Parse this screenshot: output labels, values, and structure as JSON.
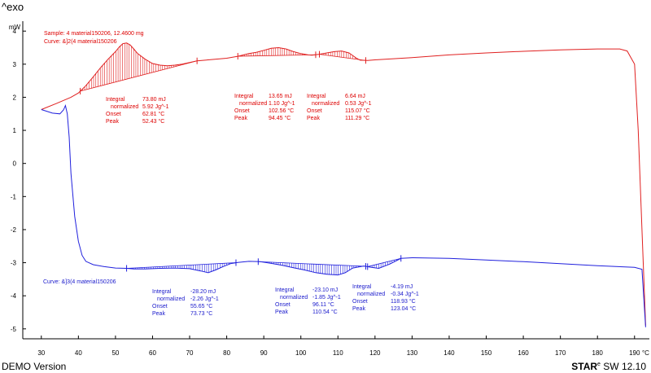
{
  "header": {
    "exo_label": "^exo"
  },
  "footer": {
    "left": "DEMO Version",
    "brand": "STAR",
    "brand_mark": "e",
    "version": "SW 12.10"
  },
  "colors": {
    "red_curve": "#e02020",
    "blue_curve": "#2020dd",
    "frame": "#000000"
  },
  "chart_data": {
    "type": "line",
    "ylabel": "mW",
    "xunit": "°C",
    "xlim": [
      25,
      194
    ],
    "ylim": [
      -5.3,
      4.3
    ],
    "x_ticks": [
      30,
      40,
      50,
      60,
      70,
      80,
      90,
      100,
      110,
      120,
      130,
      140,
      150,
      160,
      170,
      180,
      190
    ],
    "y_ticks": [
      4,
      3,
      2,
      1,
      0,
      -1,
      -2,
      -3,
      -4,
      -5
    ],
    "red_header": {
      "line1": "Sample: 4    material150206, 12.4600 mg",
      "line2": "Curve: &]2(4     material150206"
    },
    "blue_header": {
      "line1": "Curve: &]3(4    material150206"
    },
    "series": [
      {
        "name": "Curve: &]2(4",
        "color": "#e02020",
        "x": [
          30,
          34,
          38,
          40,
          42,
          44,
          46,
          48,
          50,
          51,
          52,
          53,
          54,
          55,
          56,
          58,
          60,
          62,
          64,
          66,
          68,
          70,
          72,
          75,
          80,
          83,
          86,
          88,
          90,
          92,
          94,
          96,
          98,
          100,
          102,
          103,
          105,
          107,
          109,
          111,
          113,
          115,
          116,
          118,
          120,
          130,
          140,
          150,
          160,
          170,
          180,
          186,
          188,
          190,
          191,
          192,
          193
        ],
        "y": [
          1.63,
          1.81,
          2.0,
          2.13,
          2.35,
          2.62,
          2.9,
          3.15,
          3.38,
          3.52,
          3.62,
          3.64,
          3.58,
          3.45,
          3.32,
          3.15,
          3.02,
          2.97,
          2.95,
          2.97,
          3.0,
          3.05,
          3.1,
          3.13,
          3.18,
          3.24,
          3.32,
          3.36,
          3.42,
          3.48,
          3.5,
          3.46,
          3.38,
          3.32,
          3.28,
          3.27,
          3.3,
          3.34,
          3.38,
          3.4,
          3.34,
          3.18,
          3.12,
          3.11,
          3.13,
          3.2,
          3.28,
          3.34,
          3.39,
          3.43,
          3.46,
          3.46,
          3.4,
          3.0,
          1.0,
          -2.0,
          -4.9
        ]
      },
      {
        "name": "Curve: &]3(4",
        "color": "#2020dd",
        "x": [
          30,
          33,
          35,
          36,
          36.5,
          37,
          37.5,
          38,
          39,
          40,
          41,
          42,
          44,
          47,
          50,
          53,
          55,
          58,
          62,
          66,
          70,
          73,
          75,
          77,
          79,
          81,
          83,
          86,
          89,
          92,
          95,
          98,
          101,
          104,
          107,
          110,
          112,
          114,
          117,
          119,
          121,
          124,
          127,
          130,
          140,
          150,
          160,
          170,
          180,
          190,
          192,
          193
        ],
        "y": [
          1.63,
          1.52,
          1.5,
          1.62,
          1.75,
          1.5,
          0.8,
          -0.3,
          -1.6,
          -2.35,
          -2.78,
          -2.96,
          -3.06,
          -3.12,
          -3.16,
          -3.17,
          -3.19,
          -3.19,
          -3.17,
          -3.16,
          -3.18,
          -3.25,
          -3.3,
          -3.22,
          -3.12,
          -3.03,
          -2.99,
          -2.96,
          -2.97,
          -3.02,
          -3.08,
          -3.15,
          -3.22,
          -3.3,
          -3.35,
          -3.37,
          -3.3,
          -3.16,
          -3.1,
          -3.14,
          -3.17,
          -3.04,
          -2.87,
          -2.85,
          -2.87,
          -2.92,
          -2.97,
          -3.03,
          -3.09,
          -3.14,
          -3.2,
          -4.95
        ]
      }
    ],
    "peaks": [
      {
        "curve": "red",
        "integral": "73.80 mJ",
        "normalized": "5.92 Jg^-1",
        "onset": "62.81 °C",
        "peak": "52.43 °C"
      },
      {
        "curve": "red",
        "integral": "13.65 mJ",
        "normalized": "1.10 Jg^-1",
        "onset": "102.56 °C",
        "peak": "94.45 °C"
      },
      {
        "curve": "red",
        "integral": "6.64 mJ",
        "normalized": "0.53 Jg^-1",
        "onset": "115.07 °C",
        "peak": "111.29 °C"
      },
      {
        "curve": "blue",
        "integral": "-28.20 mJ",
        "normalized": "-2.26 Jg^-1",
        "onset": "55.65 °C",
        "peak": "73.73 °C"
      },
      {
        "curve": "blue",
        "integral": "-23.10 mJ",
        "normalized": "-1.85 Jg^-1",
        "onset": "96.11 °C",
        "peak": "110.54 °C"
      },
      {
        "curve": "blue",
        "integral": "-4.19 mJ",
        "normalized": "-0.34 Jg^-1",
        "onset": "118.93 °C",
        "peak": "123.04 °C"
      }
    ],
    "labels": {
      "integral": "Integral",
      "normalized": "normalized",
      "onset": "Onset",
      "peak": "Peak"
    }
  }
}
